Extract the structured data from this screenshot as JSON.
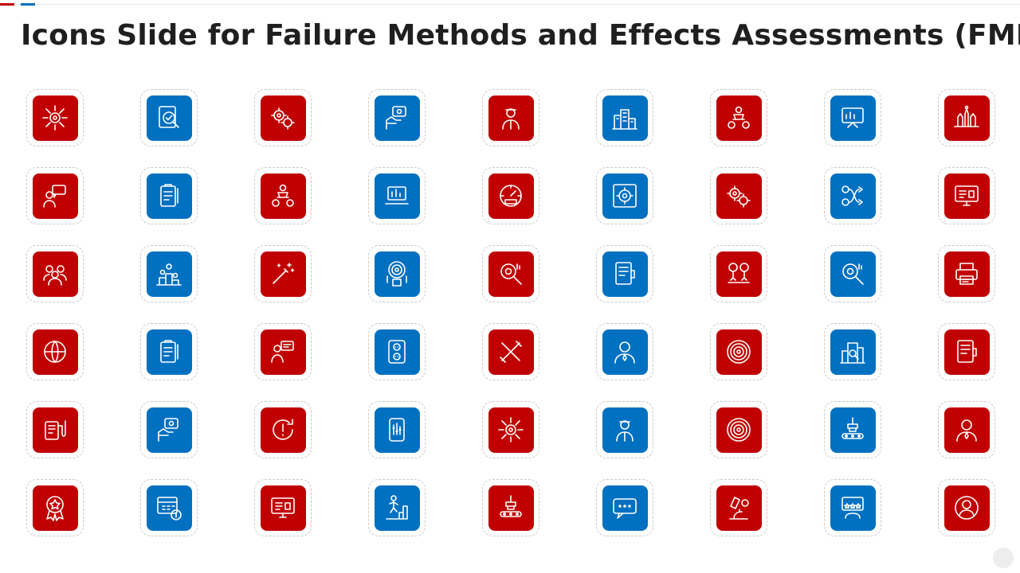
{
  "slide": {
    "title": "Icons Slide for Failure Methods and Effects Assessments (FMEA)",
    "accent_colors": {
      "red": "#c00000",
      "blue": "#0070c0"
    }
  },
  "icons": [
    {
      "name": "gear-network-icon",
      "color": "red",
      "shape": "network"
    },
    {
      "name": "document-check-icon",
      "color": "blue",
      "shape": "doccheck"
    },
    {
      "name": "gears-cycle-icon",
      "color": "red",
      "shape": "gears"
    },
    {
      "name": "hand-settings-icon",
      "color": "blue",
      "shape": "hand"
    },
    {
      "name": "officer-person-icon",
      "color": "red",
      "shape": "person"
    },
    {
      "name": "factory-building-icon",
      "color": "blue",
      "shape": "building"
    },
    {
      "name": "money-team-icon",
      "color": "red",
      "shape": "team"
    },
    {
      "name": "presentation-board-icon",
      "color": "blue",
      "shape": "board"
    },
    {
      "name": "production-line-icon",
      "color": "red",
      "shape": "line"
    },
    {
      "name": "user-chat-icon",
      "color": "red",
      "shape": "chat"
    },
    {
      "name": "clipboard-report-icon",
      "color": "blue",
      "shape": "clipboard"
    },
    {
      "name": "business-meeting-icon",
      "color": "red",
      "shape": "team"
    },
    {
      "name": "laptop-chart-icon",
      "color": "blue",
      "shape": "laptop"
    },
    {
      "name": "speedometer-icon",
      "color": "red",
      "shape": "gauge"
    },
    {
      "name": "gear-frame-icon",
      "color": "blue",
      "shape": "gearframe"
    },
    {
      "name": "gears-growth-icon",
      "color": "red",
      "shape": "gears"
    },
    {
      "name": "gear-process-icon",
      "color": "blue",
      "shape": "process"
    },
    {
      "name": "online-training-icon",
      "color": "red",
      "shape": "monitor"
    },
    {
      "name": "team-group-icon",
      "color": "red",
      "shape": "group"
    },
    {
      "name": "podium-winners-icon",
      "color": "blue",
      "shape": "podium"
    },
    {
      "name": "magic-wand-icon",
      "color": "red",
      "shape": "wand"
    },
    {
      "name": "target-question-icon",
      "color": "blue",
      "shape": "target"
    },
    {
      "name": "gear-search-icon",
      "color": "red",
      "shape": "search"
    },
    {
      "name": "coffee-document-icon",
      "color": "blue",
      "shape": "doc"
    },
    {
      "name": "growth-tree-icon",
      "color": "red",
      "shape": "tree"
    },
    {
      "name": "idea-search-icon",
      "color": "blue",
      "shape": "search"
    },
    {
      "name": "printer-icon",
      "color": "red",
      "shape": "printer"
    },
    {
      "name": "globe-hand-icon",
      "color": "red",
      "shape": "globe"
    },
    {
      "name": "checklist-icon",
      "color": "blue",
      "shape": "clipboard"
    },
    {
      "name": "presenter-icon",
      "color": "red",
      "shape": "presenter"
    },
    {
      "name": "power-socket-icon",
      "color": "blue",
      "shape": "socket"
    },
    {
      "name": "pencil-ruler-icon",
      "color": "red",
      "shape": "cross"
    },
    {
      "name": "businessman-icon",
      "color": "blue",
      "shape": "user"
    },
    {
      "name": "target-circles-icon",
      "color": "red",
      "shape": "rings"
    },
    {
      "name": "city-search-icon",
      "color": "blue",
      "shape": "city"
    },
    {
      "name": "document-chart-icon",
      "color": "red",
      "shape": "doc"
    },
    {
      "name": "medical-device-icon",
      "color": "red",
      "shape": "device"
    },
    {
      "name": "hand-scale-icon",
      "color": "blue",
      "shape": "hand"
    },
    {
      "name": "warning-cycle-icon",
      "color": "red",
      "shape": "warning"
    },
    {
      "name": "mobile-settings-icon",
      "color": "blue",
      "shape": "phone"
    },
    {
      "name": "global-network-icon",
      "color": "red",
      "shape": "network"
    },
    {
      "name": "person-heart-icon",
      "color": "blue",
      "shape": "person"
    },
    {
      "name": "chart-circle-icon",
      "color": "red",
      "shape": "rings"
    },
    {
      "name": "robot-conveyor-icon",
      "color": "blue",
      "shape": "conveyor"
    },
    {
      "name": "person-head-icon",
      "color": "red",
      "shape": "user"
    },
    {
      "name": "award-badge-icon",
      "color": "red",
      "shape": "award"
    },
    {
      "name": "calendar-money-icon",
      "color": "blue",
      "shape": "calendar"
    },
    {
      "name": "computer-chart-icon",
      "color": "red",
      "shape": "monitor"
    },
    {
      "name": "person-climb-icon",
      "color": "blue",
      "shape": "climb"
    },
    {
      "name": "robot-arm-icon",
      "color": "red",
      "shape": "conveyor"
    },
    {
      "name": "chat-bubble-icon",
      "color": "blue",
      "shape": "bubble"
    },
    {
      "name": "microscope-icon",
      "color": "red",
      "shape": "microscope"
    },
    {
      "name": "review-stars-icon",
      "color": "blue",
      "shape": "review"
    },
    {
      "name": "user-circle-icon",
      "color": "red",
      "shape": "usercircle"
    }
  ]
}
